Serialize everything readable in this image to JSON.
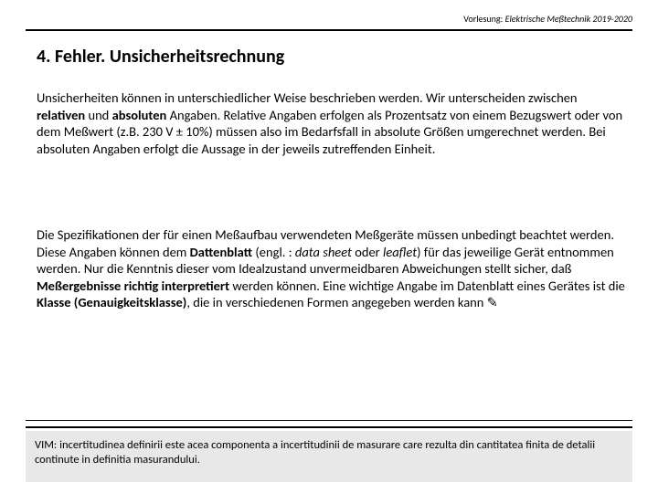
{
  "header": {
    "prefix": "Vorlesung: ",
    "course": "Elektrische Meßtechnik 2019-2020"
  },
  "title": "4. Fehler. Unsicherheitsrechnung",
  "p1": {
    "t1": "Unsicherheiten können in unterschiedlicher Weise beschrieben werden. Wir unterscheiden zwischen ",
    "b1": "relativen",
    "t2": " und ",
    "b2": "absoluten",
    "t3": " Angaben. Relative Angaben erfolgen als Prozentsatz von einem Bezugswert oder von dem Meßwert (z.B. 230 V ± 10%) müssen also im Bedarfsfall in absolute Größen umgerechnet werden. Bei absoluten Angaben erfolgt die Aussage in der jeweils zutreffenden Einheit."
  },
  "p2": {
    "t1": "Die Spezifikationen der für einen Meßaufbau verwendeten Meßgeräte müssen unbedingt beachtet werden. Diese Angaben können dem ",
    "b1": "Dattenblatt",
    "t2": " (engl. : ",
    "i1": "data sheet",
    "t3": " oder ",
    "i2": "leaflet",
    "t4": ") für das jeweilige Gerät entnommen werden. Nur die Kenntnis dieser vom Idealzustand unvermeidbaren Abweichungen stellt sicher, daß ",
    "b2": "Meßergebnisse richtig interpretiert",
    "t5": " werden können. Eine wichtige Angabe im Datenblatt eines Gerätes ist die ",
    "b3": "Klasse (Genauigkeitsklasse)",
    "t6": ", die in verschiedenen Formen angegeben werden kann ",
    "sym": "✎"
  },
  "footer": {
    "t1": "VIM: incertitudinea definirii este acea componenta a incertitudinii de masurare care rezulta din cantitatea finita de detalii continute in definitia masurandului."
  },
  "colors": {
    "background": "#ffffff",
    "text": "#000000",
    "footer_bg": "#e8e8e8",
    "rule": "#000000"
  }
}
